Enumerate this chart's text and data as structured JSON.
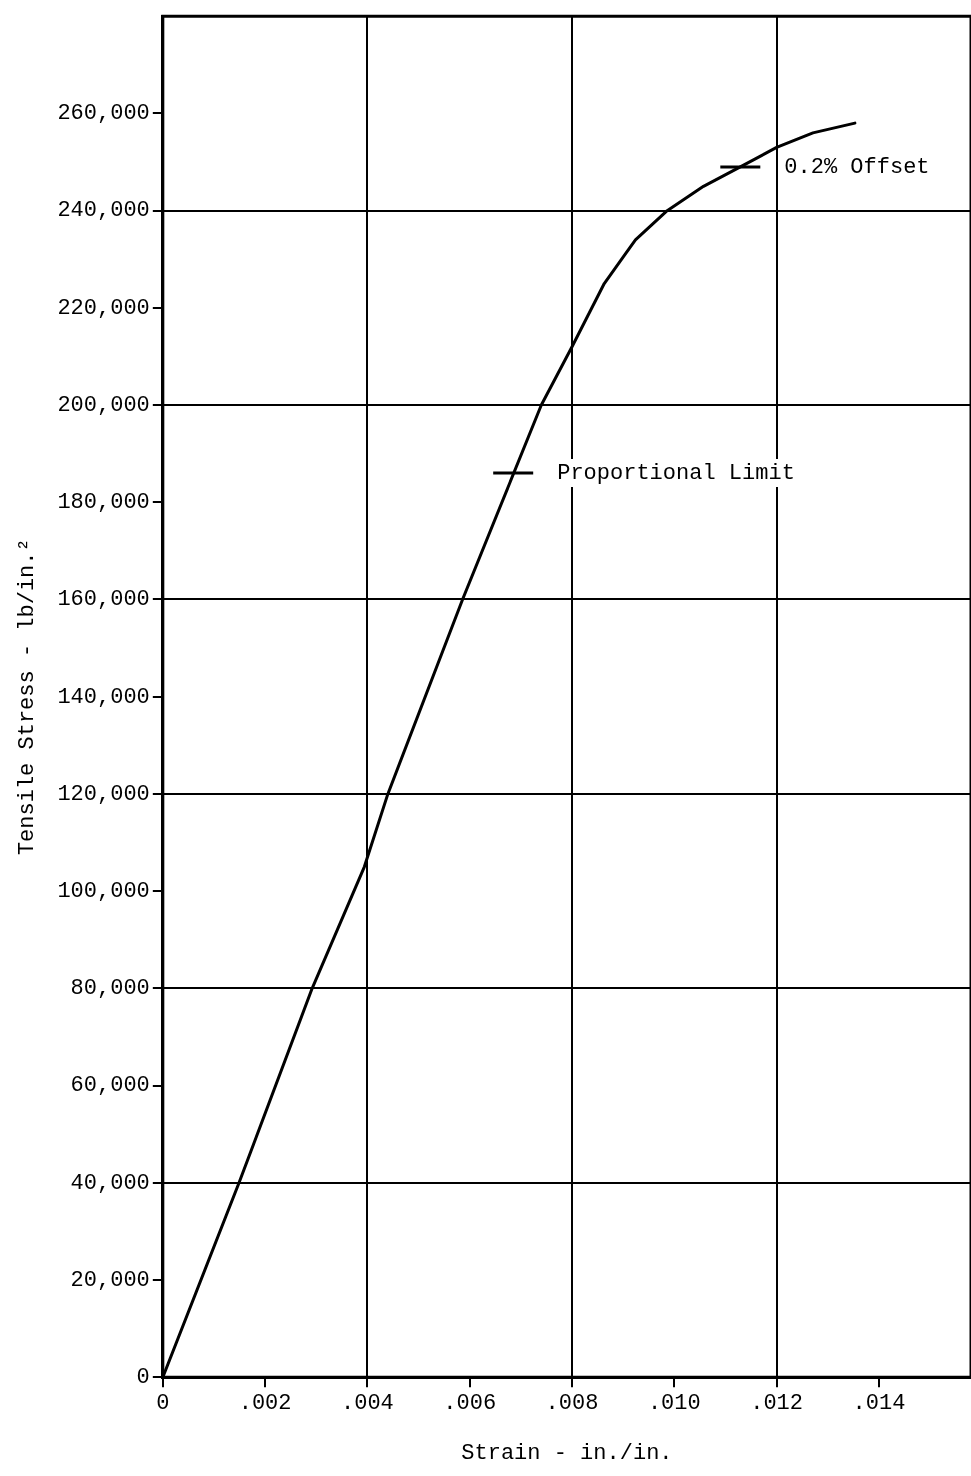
{
  "chart_data": {
    "type": "line",
    "xlabel": "Strain - in./in.",
    "ylabel": "Tensile Stress - lb/in.²",
    "x": [
      0,
      0.00149,
      0.00292,
      0.00394,
      0.0044,
      0.00586,
      0.0074,
      0.008,
      0.00863,
      0.00924,
      0.00986,
      0.01057,
      0.01129,
      0.012,
      0.01271,
      0.01353
    ],
    "series": [
      {
        "color": "#000000",
        "values": [
          0,
          40000,
          80000,
          105000,
          120000,
          160000,
          200000,
          212000,
          225000,
          234000,
          240000,
          245000,
          249000,
          253000,
          256000,
          258000
        ]
      }
    ],
    "xlim": [
      0,
      0.0158
    ],
    "ylim": [
      0,
      280000
    ],
    "xticks": [
      0,
      {
        "value": 0.002,
        "label": ".002"
      },
      {
        "value": 0.004,
        "label": ".004"
      },
      {
        "value": 0.006,
        "label": ".006"
      },
      {
        "value": 0.008,
        "label": ".008"
      },
      {
        "value": 0.01,
        "label": ".010"
      },
      {
        "value": 0.012,
        "label": ".012"
      },
      {
        "value": 0.014,
        "label": ".014"
      }
    ],
    "yticks": [
      0,
      {
        "value": 20000,
        "label": "20,000"
      },
      {
        "value": 40000,
        "label": "40,000"
      },
      {
        "value": 60000,
        "label": "60,000"
      },
      {
        "value": 80000,
        "label": "80,000"
      },
      {
        "value": 100000,
        "label": "100,000"
      },
      {
        "value": 120000,
        "label": "120,000"
      },
      {
        "value": 140000,
        "label": "140,000"
      },
      {
        "value": 160000,
        "label": "160,000"
      },
      {
        "value": 180000,
        "label": "180,000"
      },
      {
        "value": 200000,
        "label": "200,000"
      },
      {
        "value": 220000,
        "label": "220,000"
      },
      {
        "value": 240000,
        "label": "240,000"
      },
      {
        "value": 260000,
        "label": "260,000"
      }
    ],
    "annotations": [
      {
        "text": "Proportional Limit",
        "x": 0.00685,
        "y": 186000
      },
      {
        "text": "0.2% Offset",
        "x": 0.01129,
        "y": 249000
      }
    ],
    "grid": true,
    "legend": false,
    "marker": "none",
    "line_style": "solid"
  }
}
